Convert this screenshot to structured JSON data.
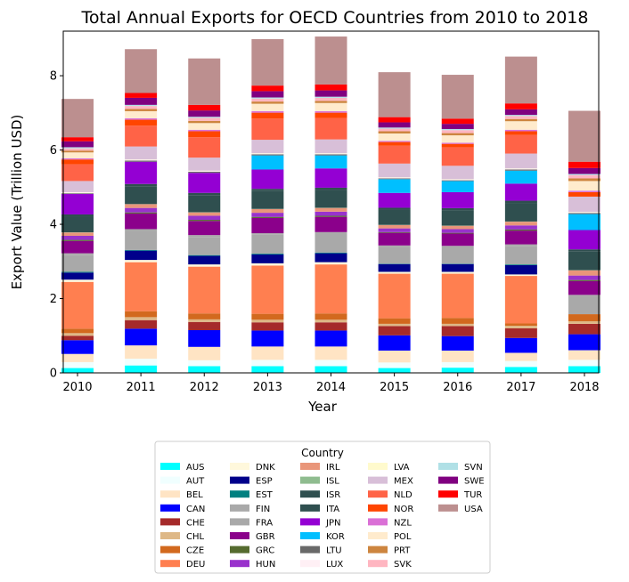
{
  "chart_data": {
    "type": "bar",
    "stacked": true,
    "title": "Total Annual Exports for OECD Countries from 2010 to 2018",
    "xlabel": "Year",
    "ylabel": "Export Value (Trillion USD)",
    "ylim": [
      0,
      9.2
    ],
    "yticks": [
      0,
      2,
      4,
      6,
      8
    ],
    "grid": false,
    "legend_title": "Country",
    "legend_position": "below",
    "categories": [
      "2010",
      "2011",
      "2012",
      "2013",
      "2014",
      "2015",
      "2016",
      "2017",
      "2018"
    ],
    "series": [
      {
        "name": "AUS",
        "color": "#00FFFF",
        "values": [
          0.13,
          0.2,
          0.18,
          0.18,
          0.18,
          0.13,
          0.14,
          0.16,
          0.18
        ]
      },
      {
        "name": "AUT",
        "color": "#F0FFFF",
        "values": [
          0.16,
          0.18,
          0.16,
          0.17,
          0.17,
          0.15,
          0.15,
          0.16,
          0.17
        ]
      },
      {
        "name": "BEL",
        "color": "#FFE4C4",
        "values": [
          0.22,
          0.36,
          0.36,
          0.36,
          0.36,
          0.32,
          0.31,
          0.22,
          0.26
        ]
      },
      {
        "name": "CAN",
        "color": "#0000FF",
        "values": [
          0.37,
          0.45,
          0.45,
          0.43,
          0.43,
          0.41,
          0.39,
          0.4,
          0.43
        ]
      },
      {
        "name": "CHE",
        "color": "#A52A2A",
        "values": [
          0.12,
          0.23,
          0.22,
          0.22,
          0.22,
          0.25,
          0.27,
          0.26,
          0.28
        ]
      },
      {
        "name": "CHL",
        "color": "#DEB887",
        "values": [
          0.07,
          0.08,
          0.07,
          0.07,
          0.07,
          0.06,
          0.06,
          0.07,
          0.07
        ]
      },
      {
        "name": "CZE",
        "color": "#D2691E",
        "values": [
          0.12,
          0.16,
          0.16,
          0.16,
          0.17,
          0.15,
          0.16,
          0.06,
          0.19
        ]
      },
      {
        "name": "DEU",
        "color": "#FF7F50",
        "values": [
          1.26,
          1.32,
          1.26,
          1.3,
          1.32,
          1.2,
          1.19,
          1.28,
          0
        ]
      },
      {
        "name": "DNK",
        "color": "#FFF8DC",
        "values": [
          0.06,
          0.06,
          0.06,
          0.06,
          0.06,
          0.05,
          0.05,
          0.04,
          0
        ]
      },
      {
        "name": "ESP",
        "color": "#00008B",
        "values": [
          0.19,
          0.25,
          0.23,
          0.24,
          0.24,
          0.21,
          0.21,
          0.25,
          0
        ]
      },
      {
        "name": "EST",
        "color": "#008080",
        "values": [
          0.02,
          0.02,
          0.02,
          0.02,
          0.02,
          0.01,
          0.01,
          0.02,
          0
        ]
      },
      {
        "name": "FIN",
        "color": "#A9A9A9",
        "values": [
          0.46,
          0.51,
          0.49,
          0.51,
          0.51,
          0.46,
          0.45,
          0.5,
          0.48
        ]
      },
      {
        "name": "FRA",
        "color": "#A9A9A9",
        "values": [
          0.04,
          0.05,
          0.05,
          0.04,
          0.04,
          0.03,
          0.03,
          0.04,
          0.04
        ]
      },
      {
        "name": "GBR",
        "color": "#8B008B",
        "values": [
          0.33,
          0.42,
          0.38,
          0.41,
          0.41,
          0.34,
          0.33,
          0.37,
          0.37
        ]
      },
      {
        "name": "GRC",
        "color": "#556B2F",
        "values": [
          0.03,
          0.03,
          0.03,
          0.03,
          0.03,
          0.02,
          0.02,
          0.03,
          0.03
        ]
      },
      {
        "name": "HUN",
        "color": "#9932CC",
        "values": [
          0.11,
          0.12,
          0.11,
          0.11,
          0.11,
          0.1,
          0.1,
          0.11,
          0.12
        ]
      },
      {
        "name": "IRL",
        "color": "#E9967A",
        "values": [
          0.09,
          0.1,
          0.09,
          0.1,
          0.1,
          0.09,
          0.09,
          0.1,
          0.14
        ]
      },
      {
        "name": "ISL",
        "color": "#8FBC8F",
        "values": [
          0.005,
          0.005,
          0.005,
          0.005,
          0.005,
          0.005,
          0.005,
          0.005,
          0.005
        ]
      },
      {
        "name": "ISR",
        "color": "#2F4F4F",
        "values": [
          0.42,
          0.47,
          0.46,
          0.48,
          0.48,
          0.4,
          0.41,
          0.5,
          0.5
        ]
      },
      {
        "name": "ITA",
        "color": "#2F4F4F",
        "values": [
          0.06,
          0.07,
          0.06,
          0.06,
          0.06,
          0.06,
          0.06,
          0.06,
          0.06
        ]
      },
      {
        "name": "JPN",
        "color": "#9400D3",
        "values": [
          0.55,
          0.6,
          0.54,
          0.52,
          0.52,
          0.4,
          0.43,
          0.46,
          0.52
        ]
      },
      {
        "name": "KOR",
        "color": "#00BFFF",
        "values": [
          0,
          0,
          0,
          0.38,
          0.35,
          0.37,
          0.3,
          0.35,
          0.43
        ]
      },
      {
        "name": "LTU",
        "color": "#696969",
        "values": [
          0.02,
          0.03,
          0.03,
          0.03,
          0.03,
          0.02,
          0.02,
          0.03,
          0.03
        ]
      },
      {
        "name": "LUX",
        "color": "#FFF0F5",
        "values": [
          0.02,
          0.02,
          0.02,
          0.02,
          0.02,
          0.02,
          0.02,
          0.02,
          0.02
        ]
      },
      {
        "name": "LVA",
        "color": "#FFFACD",
        "values": [
          0.01,
          0.01,
          0.01,
          0.01,
          0.01,
          0.01,
          0.01,
          0.01,
          0.01
        ]
      },
      {
        "name": "MEX",
        "color": "#D8BFD8",
        "values": [
          0.3,
          0.35,
          0.35,
          0.36,
          0.37,
          0.37,
          0.36,
          0.4,
          0.41
        ]
      },
      {
        "name": "NLD",
        "color": "#FF6347",
        "values": [
          0.45,
          0.56,
          0.55,
          0.57,
          0.58,
          0.48,
          0.5,
          0.5,
          0
        ]
      },
      {
        "name": "NOR",
        "color": "#FF4500",
        "values": [
          0.13,
          0.16,
          0.16,
          0.16,
          0.14,
          0.1,
          0.09,
          0.1,
          0.12
        ]
      },
      {
        "name": "NZL",
        "color": "#DA70D6",
        "values": [
          0.03,
          0.04,
          0.04,
          0.04,
          0.04,
          0.03,
          0.03,
          0.04,
          0.04
        ]
      },
      {
        "name": "POL",
        "color": "#FFEBCD",
        "values": [
          0.16,
          0.19,
          0.18,
          0.2,
          0.22,
          0.2,
          0.2,
          0.23,
          0.26
        ]
      },
      {
        "name": "PRT",
        "color": "#CD853F",
        "values": [
          0.05,
          0.06,
          0.06,
          0.06,
          0.06,
          0.06,
          0.06,
          0.06,
          0.07
        ]
      },
      {
        "name": "SVK",
        "color": "#FFB6C1",
        "values": [
          0.06,
          0.08,
          0.08,
          0.08,
          0.08,
          0.07,
          0.08,
          0.08,
          0.09
        ]
      },
      {
        "name": "SVN",
        "color": "#B0E0E6",
        "values": [
          0.03,
          0.03,
          0.03,
          0.03,
          0.03,
          0.03,
          0.03,
          0.03,
          0.03
        ]
      },
      {
        "name": "SWE",
        "color": "#800080",
        "values": [
          0.16,
          0.19,
          0.17,
          0.17,
          0.17,
          0.14,
          0.14,
          0.15,
          0.16
        ]
      },
      {
        "name": "TUR",
        "color": "#FF0000",
        "values": [
          0.11,
          0.13,
          0.15,
          0.15,
          0.16,
          0.14,
          0.14,
          0.16,
          0.17
        ]
      },
      {
        "name": "USA",
        "color": "#BC8F8F",
        "values": [
          1.03,
          1.18,
          1.25,
          1.25,
          1.29,
          1.21,
          1.18,
          1.26,
          1.37
        ]
      }
    ]
  }
}
